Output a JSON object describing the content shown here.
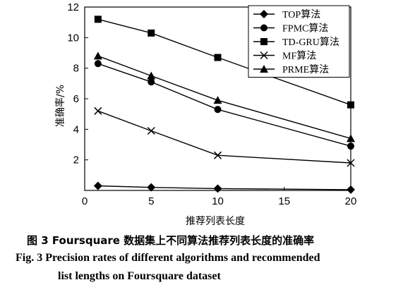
{
  "chart_data": {
    "type": "line",
    "xlabel": "推荐列表长度",
    "ylabel": "准确率/%",
    "xlim": [
      0,
      20
    ],
    "ylim": [
      0,
      12
    ],
    "x_ticks": [
      "0",
      "5",
      "10",
      "15",
      "20"
    ],
    "y_ticks": [
      "2",
      "4",
      "6",
      "8",
      "10",
      "12"
    ],
    "x": [
      1,
      5,
      10,
      20
    ],
    "grid": false,
    "legend_position": "top-right",
    "series": [
      {
        "name": "TOP算法",
        "marker": "diamond",
        "values": [
          0.3,
          0.2,
          0.12,
          0.05
        ]
      },
      {
        "name": "FPMC算法",
        "marker": "circle",
        "values": [
          8.3,
          7.1,
          5.3,
          2.9
        ]
      },
      {
        "name": "TD-GRU算法",
        "marker": "square",
        "values": [
          11.2,
          10.3,
          8.7,
          5.6
        ]
      },
      {
        "name": "MF算法",
        "marker": "cross",
        "values": [
          5.2,
          3.9,
          2.3,
          1.8
        ]
      },
      {
        "name": "PRME算法",
        "marker": "triangle",
        "values": [
          8.8,
          7.5,
          5.9,
          3.4
        ]
      }
    ]
  },
  "caption": {
    "cn": "图 3    Foursquare 数据集上不同算法推荐列表长度的准确率",
    "en_line1": "Fig. 3    Precision rates of different algorithms and recommended",
    "en_line2": "list lengths on Foursquare dataset"
  }
}
